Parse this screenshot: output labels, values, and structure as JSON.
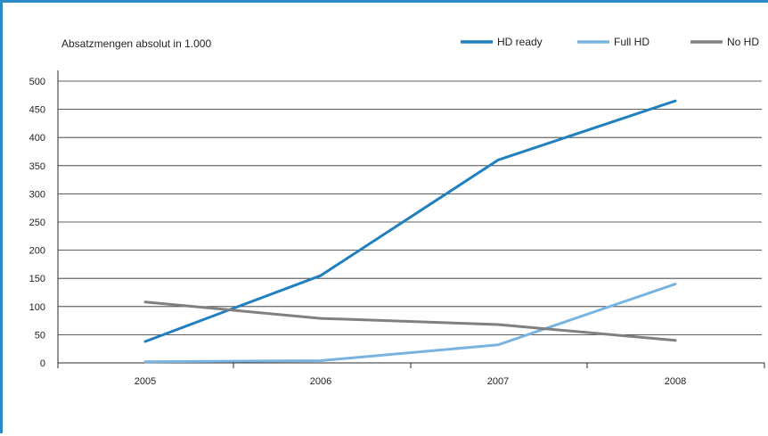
{
  "chart_data": {
    "type": "line",
    "ylabel": "Absatzmengen absolut in 1.000",
    "categories": [
      "2005",
      "2006",
      "2007",
      "2008"
    ],
    "series": [
      {
        "name": "HD ready",
        "color": "#1f7fbf",
        "values": [
          38,
          155,
          360,
          465
        ]
      },
      {
        "name": "Full HD",
        "color": "#79b4e0",
        "values": [
          2,
          4,
          32,
          140
        ]
      },
      {
        "name": "No HD",
        "color": "#808080",
        "values": [
          108,
          79,
          68,
          40
        ]
      }
    ],
    "ylim": [
      0,
      500
    ],
    "yticks": [
      "0",
      "50",
      "100",
      "150",
      "200",
      "250",
      "300",
      "350",
      "400",
      "450",
      "500"
    ],
    "grid": true,
    "legend_position": "top-right"
  }
}
